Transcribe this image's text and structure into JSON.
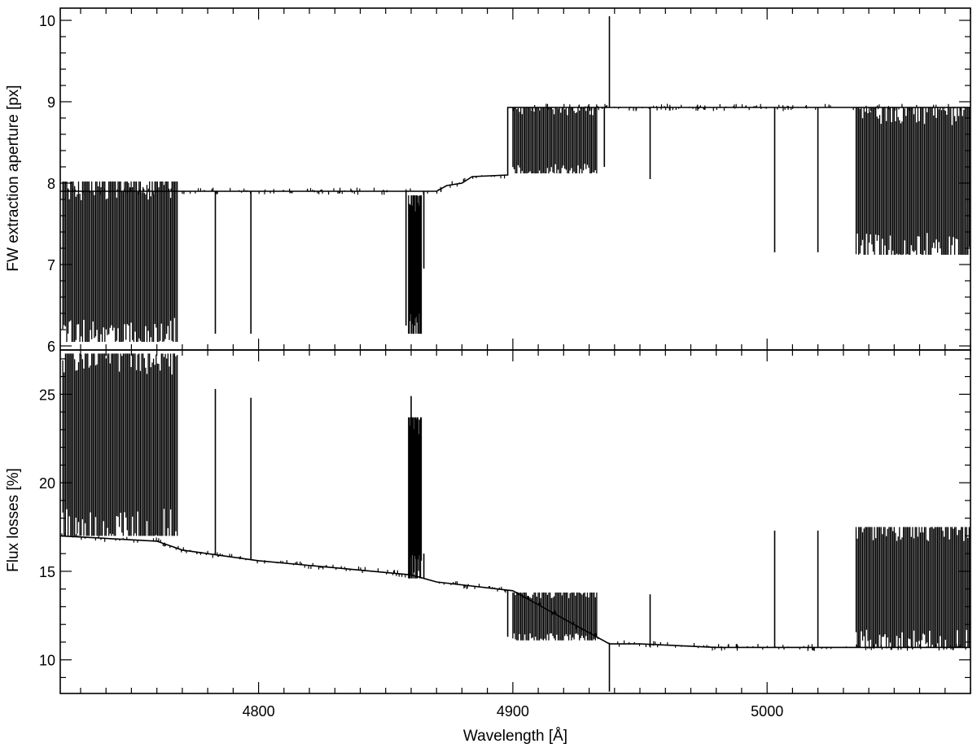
{
  "chart_data": [
    {
      "type": "line",
      "panel": "top",
      "title": "",
      "xlabel": "",
      "ylabel": "FW extraction aperture [px]",
      "xlim": [
        4722,
        5080
      ],
      "ylim": [
        5.95,
        10.15
      ],
      "x_ticks": [
        4800,
        4900,
        5000
      ],
      "x_tick_labels": [
        "",
        "",
        ""
      ],
      "y_ticks": [
        6,
        7,
        8,
        9,
        10
      ],
      "y_tick_labels": [
        "6",
        "7",
        "8",
        "9",
        "10"
      ],
      "grid": false,
      "legend": "none",
      "line_color": "#000000",
      "series": [
        {
          "baseline": [
            [
              4722,
              7.9
            ],
            [
              4870,
              7.9
            ],
            [
              4874,
              7.97
            ],
            [
              4880,
              8.0
            ],
            [
              4884,
              8.08
            ],
            [
              4898,
              8.1
            ],
            [
              4898,
              8.93
            ],
            [
              5080,
              8.93
            ]
          ],
          "dense_regions": [
            {
              "x_start": 4723,
              "x_end": 4768,
              "low": 6.05,
              "high": 8.02
            },
            {
              "x_start": 4859,
              "x_end": 4864,
              "low": 6.15,
              "high": 7.85
            },
            {
              "x_start": 4900,
              "x_end": 4933,
              "low": 8.12,
              "high": 8.93
            },
            {
              "x_start": 5035,
              "x_end": 5080,
              "low": 7.12,
              "high": 8.93
            }
          ],
          "spikes": [
            {
              "x": 4938,
              "y": 10.05
            },
            {
              "x": 4938,
              "y": 8.93
            },
            {
              "x": 4954,
              "y": 8.05
            },
            {
              "x": 4797,
              "y": 6.15
            },
            {
              "x": 4783,
              "y": 6.15
            },
            {
              "x": 4865,
              "y": 6.95
            },
            {
              "x": 5003,
              "y": 7.15
            },
            {
              "x": 5020,
              "y": 7.15
            },
            {
              "x": 4858,
              "y": 6.25
            },
            {
              "x": 4936,
              "y": 8.2
            }
          ]
        }
      ]
    },
    {
      "type": "line",
      "panel": "bottom",
      "title": "",
      "xlabel": "Wavelength [Å]",
      "ylabel": "Flux losses [%]",
      "xlim": [
        4722,
        5080
      ],
      "ylim": [
        8.1,
        27.5
      ],
      "x_ticks": [
        4800,
        4900,
        5000
      ],
      "x_tick_labels": [
        "4800",
        "4900",
        "5000"
      ],
      "y_ticks": [
        10,
        15,
        20,
        25
      ],
      "y_tick_labels": [
        "10",
        "15",
        "20",
        "25"
      ],
      "grid": false,
      "legend": "none",
      "line_color": "#000000",
      "series": [
        {
          "baseline": [
            [
              4722,
              17.0
            ],
            [
              4760,
              16.7
            ],
            [
              4770,
              16.2
            ],
            [
              4800,
              15.6
            ],
            [
              4830,
              15.2
            ],
            [
              4860,
              14.8
            ],
            [
              4870,
              14.4
            ],
            [
              4900,
              13.9
            ],
            [
              4938,
              10.9
            ],
            [
              4950,
              10.9
            ],
            [
              4980,
              10.7
            ],
            [
              5080,
              10.7
            ]
          ],
          "dense_regions": [
            {
              "x_start": 4723,
              "x_end": 4768,
              "low": 17.0,
              "high": 27.3
            },
            {
              "x_start": 4859,
              "x_end": 4864,
              "low": 14.6,
              "high": 23.7
            },
            {
              "x_start": 4900,
              "x_end": 4933,
              "low": 11.1,
              "high": 13.8
            },
            {
              "x_start": 5035,
              "x_end": 5080,
              "low": 10.7,
              "high": 17.5
            }
          ],
          "spikes": [
            {
              "x": 4938,
              "y": 8.2
            },
            {
              "x": 4954,
              "y": 13.7
            },
            {
              "x": 4797,
              "y": 24.8
            },
            {
              "x": 4783,
              "y": 25.3
            },
            {
              "x": 4860,
              "y": 24.9
            },
            {
              "x": 4865,
              "y": 16.0
            },
            {
              "x": 5003,
              "y": 17.3
            },
            {
              "x": 5020,
              "y": 17.3
            },
            {
              "x": 4898,
              "y": 11.3
            }
          ]
        }
      ]
    }
  ]
}
